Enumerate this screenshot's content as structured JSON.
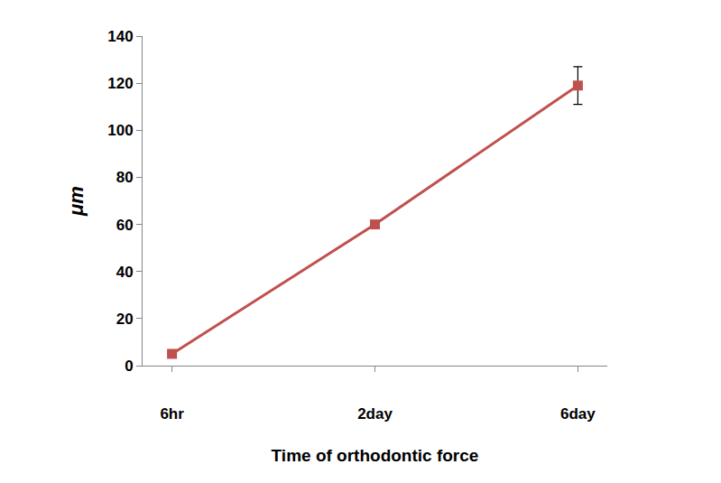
{
  "chart_data": {
    "type": "line",
    "x_label": "Time of orthodontic force",
    "y_label": "μm",
    "categories": [
      "6hr",
      "2day",
      "6day"
    ],
    "values": [
      5,
      60,
      119
    ],
    "error": [
      0,
      0,
      8
    ],
    "color": "#c0504d",
    "marker": "square",
    "line_style": "solid",
    "ylim": [
      0,
      140
    ],
    "yticks": [
      0,
      20,
      40,
      60,
      80,
      100,
      120,
      140
    ],
    "grid": false
  }
}
